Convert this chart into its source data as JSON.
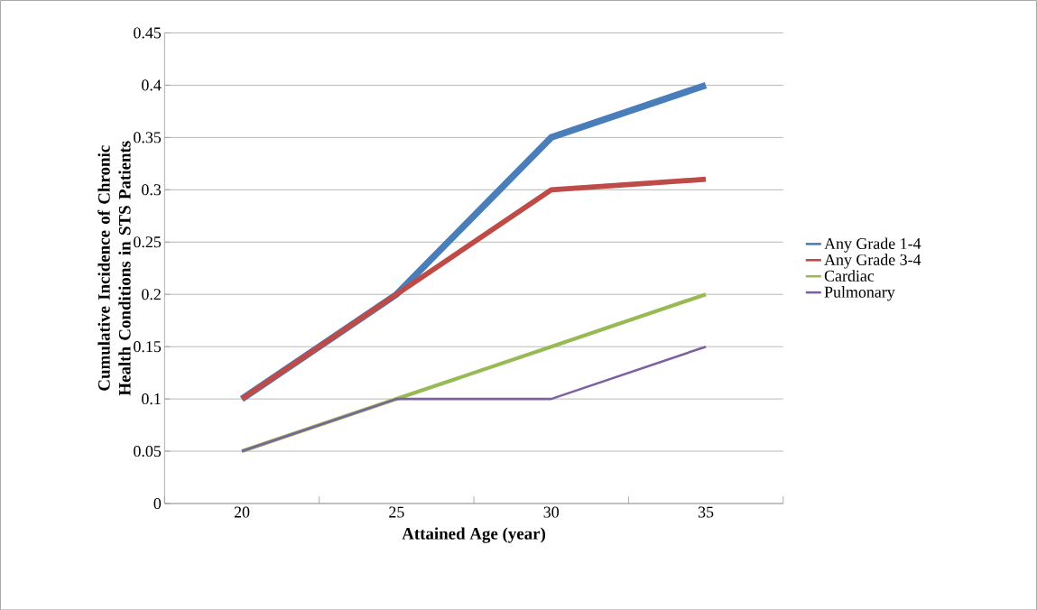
{
  "chart_data": {
    "type": "line",
    "xlabel": "Attained Age (year)",
    "ylabel": "Cumulative Incidence of Chronic Health Conditions in STS Patients",
    "categories": [
      "20",
      "25",
      "30",
      "35"
    ],
    "series": [
      {
        "name": "Any Grade 1-4",
        "color": "#4a7ebb",
        "values": [
          0.1,
          0.2,
          0.35,
          0.4
        ]
      },
      {
        "name": "Any Grade 3-4",
        "color": "#be4b48",
        "values": [
          0.1,
          0.2,
          0.3,
          0.31
        ]
      },
      {
        "name": "Cardiac",
        "color": "#98b954",
        "values": [
          0.05,
          0.1,
          0.15,
          0.2
        ]
      },
      {
        "name": "Pulmonary",
        "color": "#7d60a0",
        "values": [
          0.05,
          0.1,
          0.1,
          0.15
        ]
      }
    ],
    "ylim": [
      0,
      0.45
    ],
    "yticks": [
      0,
      0.05,
      0.1,
      0.15,
      0.2,
      0.25,
      0.3,
      0.35,
      0.4,
      0.45
    ],
    "grid": "y",
    "legend": "right",
    "marker": "none",
    "line_style": "solid"
  }
}
